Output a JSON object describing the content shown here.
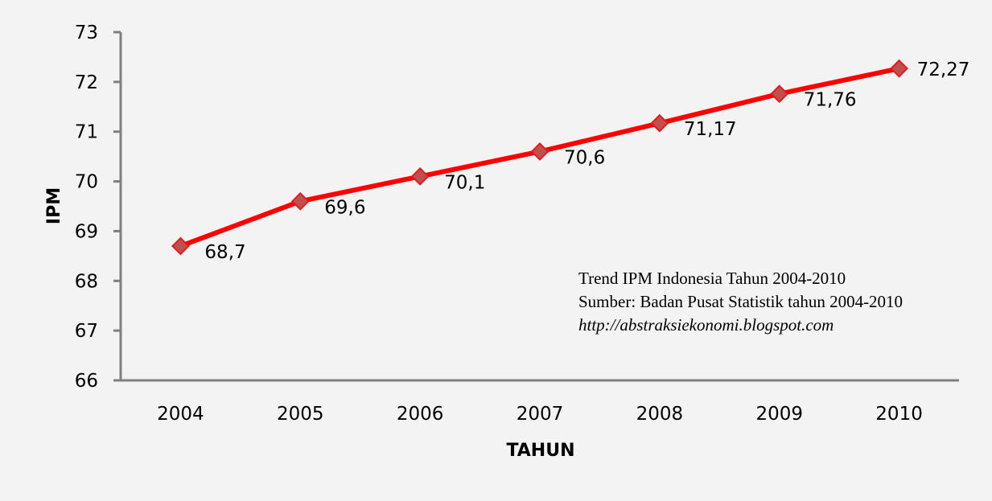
{
  "chart_data": {
    "type": "line",
    "title": "Trend IPM Indonesia Tahun 2004-2010",
    "xlabel": "TAHUN",
    "ylabel": "IPM",
    "categories": [
      "2004",
      "2005",
      "2006",
      "2007",
      "2008",
      "2009",
      "2010"
    ],
    "series": [
      {
        "name": "IPM",
        "values": [
          68.7,
          69.6,
          70.1,
          70.6,
          71.17,
          71.76,
          72.27
        ],
        "labels": [
          "68,7",
          "69,6",
          "70,1",
          "70,6",
          "71,17",
          "71,76",
          "72,27"
        ],
        "color": "#ff0000",
        "marker": "diamond",
        "marker_color": "#c0504d"
      }
    ],
    "ylim": [
      66,
      73
    ],
    "yticks": [
      "73",
      "72",
      "71",
      "70",
      "69",
      "68",
      "67",
      "66"
    ],
    "grid": false,
    "legend": null,
    "annotations": [
      "Trend IPM Indonesia Tahun 2004-2010",
      "Sumber: Badan Pusat Statistik tahun 2004-2010",
      "http://abstraksiekonomi.blogspot.com"
    ]
  },
  "colors": {
    "background": "#f3f3f3",
    "axis": "#7f7f7f",
    "line": "#ff0000",
    "marker_fill": "#c0504d",
    "marker_stroke": "#e31a1c"
  }
}
